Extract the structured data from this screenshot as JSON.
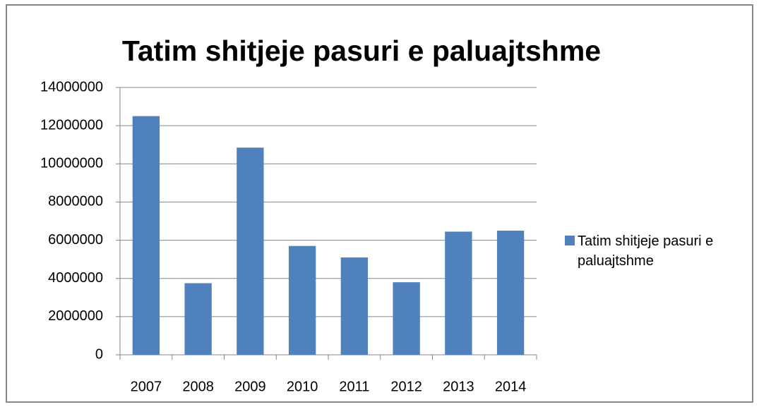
{
  "chart_data": {
    "type": "bar",
    "title": "Tatim shitjeje pasuri e paluajtshme",
    "categories": [
      "2007",
      "2008",
      "2009",
      "2010",
      "2011",
      "2012",
      "2013",
      "2014"
    ],
    "series": [
      {
        "name": "Tatim shitjeje pasuri e paluajtshme",
        "color": "#4f81bd",
        "values": [
          12500000,
          3750000,
          10850000,
          5700000,
          5100000,
          3800000,
          6450000,
          6500000
        ]
      }
    ],
    "ylim": [
      0,
      14000000
    ],
    "yticks": [
      0,
      2000000,
      4000000,
      6000000,
      8000000,
      10000000,
      12000000,
      14000000
    ],
    "grid": true,
    "legend": "right"
  }
}
